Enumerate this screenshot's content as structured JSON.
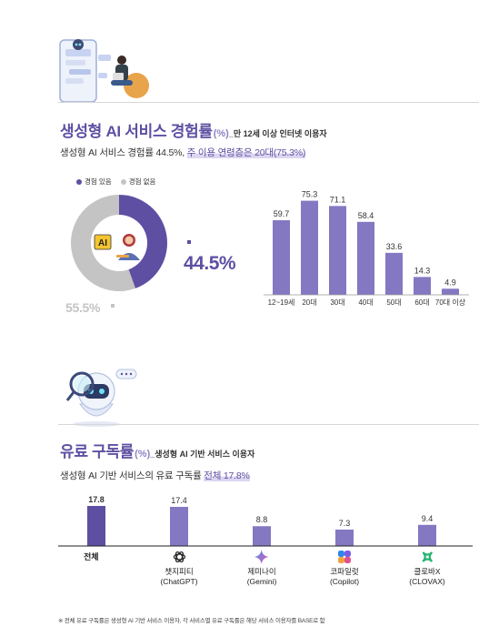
{
  "section1": {
    "title": "생성형 AI 서비스 경험률",
    "title_unit": "(%)",
    "title_scope": "_만 12세 이상 인터넷 이용자",
    "subtitle_prefix": "생성형 AI 서비스 경험률 44.5%, ",
    "subtitle_highlight": "주 이용 연령층은 20대(75.3%)",
    "legend": [
      {
        "label": "경험 있음",
        "color": "#5e4fa2"
      },
      {
        "label": "경험 없음",
        "color": "#c4c4c4"
      }
    ],
    "ai_badge": "AI"
  },
  "section2": {
    "title": "유료 구독률",
    "title_unit": "(%)",
    "title_scope": "_생성형 AI 기반 서비스 이용자",
    "subtitle_prefix": "생성형 AI 기반 서비스의 유료 구독률 ",
    "subtitle_highlight": "전체 17.8%",
    "total_label": "전체",
    "services": [
      {
        "name": "챗지피티",
        "sub": "(ChatGPT)",
        "icon": "chatgpt-icon"
      },
      {
        "name": "제미나이",
        "sub": "(Gemini)",
        "icon": "gemini-icon"
      },
      {
        "name": "코파일럿",
        "sub": "(Copilot)",
        "icon": "copilot-icon"
      },
      {
        "name": "클로바X",
        "sub": "(CLOVAX)",
        "icon": "clovax-icon"
      }
    ]
  },
  "footnote": "※ 전체 유료 구독률은 생성형 AI 기반 서비스 이용자, 각 서비스별 유료 구독률은 해당 서비스 이용자를 BASE로 함",
  "chart_data": [
    {
      "type": "pie",
      "categories": [
        "경험 있음",
        "경험 없음"
      ],
      "values": [
        44.5,
        55.5
      ],
      "labels": [
        "44.5%",
        "55.5%"
      ],
      "colors": [
        "#5e4fa2",
        "#c4c4c4"
      ]
    },
    {
      "type": "bar",
      "categories": [
        "12~19세",
        "20대",
        "30대",
        "40대",
        "50대",
        "60대",
        "70대 이상"
      ],
      "values": [
        59.7,
        75.3,
        71.1,
        58.4,
        33.6,
        14.3,
        4.9
      ],
      "value_labels": [
        "59.7",
        "75.3",
        "71.1",
        "58.4",
        "33.6",
        "14.3",
        "4.9"
      ],
      "ylim": [
        0,
        80
      ],
      "color": "#8478c2",
      "grid": false
    },
    {
      "type": "bar",
      "categories": [
        "전체",
        "챗지피티(ChatGPT)",
        "제미나이(Gemini)",
        "코파일럿(Copilot)",
        "클로바X(CLOVAX)"
      ],
      "values": [
        17.8,
        17.4,
        8.8,
        7.3,
        9.4
      ],
      "value_labels": [
        "17.8",
        "17.4",
        "8.8",
        "7.3",
        "9.4"
      ],
      "ylim": [
        0,
        20
      ],
      "colors": [
        "#5e4fa2",
        "#8478c2",
        "#8478c2",
        "#8478c2",
        "#8478c2"
      ],
      "grid": false
    }
  ]
}
